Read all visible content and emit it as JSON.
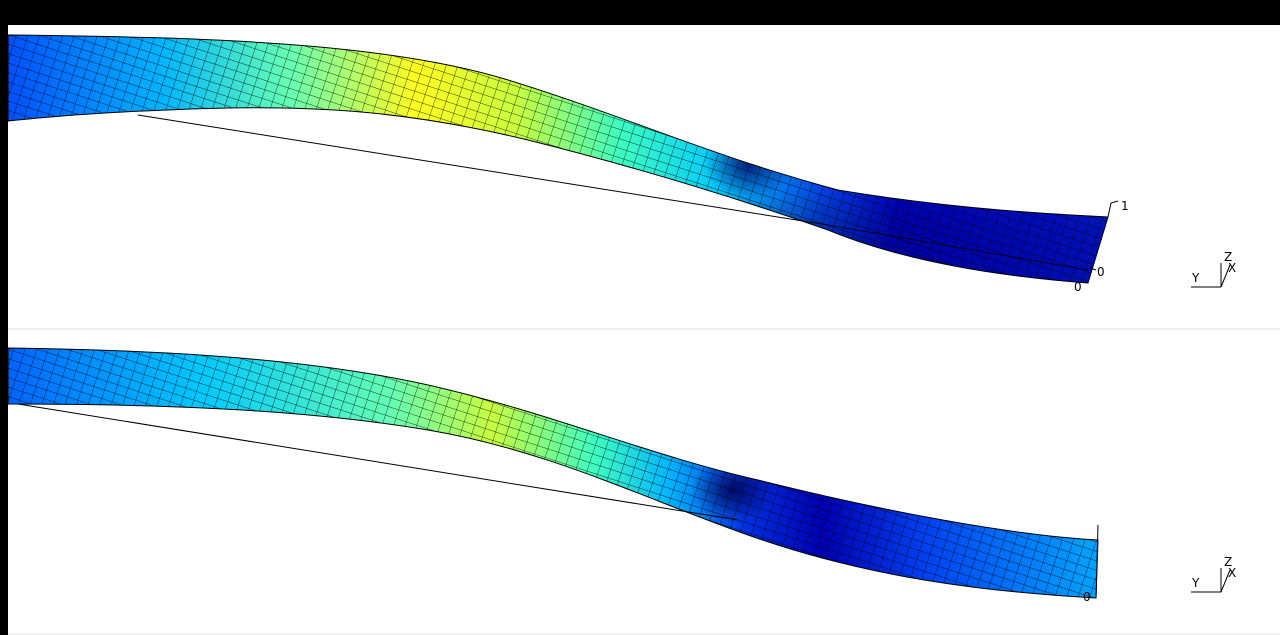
{
  "top_view": {
    "triad": {
      "y_label": "Y",
      "z_label": "Z",
      "x_label": "X"
    },
    "ticks": {
      "upper": "1",
      "middle": "0",
      "lower": "0"
    }
  },
  "bottom_view": {
    "triad": {
      "y_label": "Y",
      "z_label": "Z",
      "x_label": "X"
    },
    "ticks": {
      "lower": "0"
    }
  },
  "colors": {
    "colormap": [
      "#0000c8",
      "#0050ff",
      "#00c8ff",
      "#64ffb4",
      "#ffff00"
    ],
    "mesh_line": "#000000",
    "background": "#ffffff",
    "frame": "#000000"
  }
}
